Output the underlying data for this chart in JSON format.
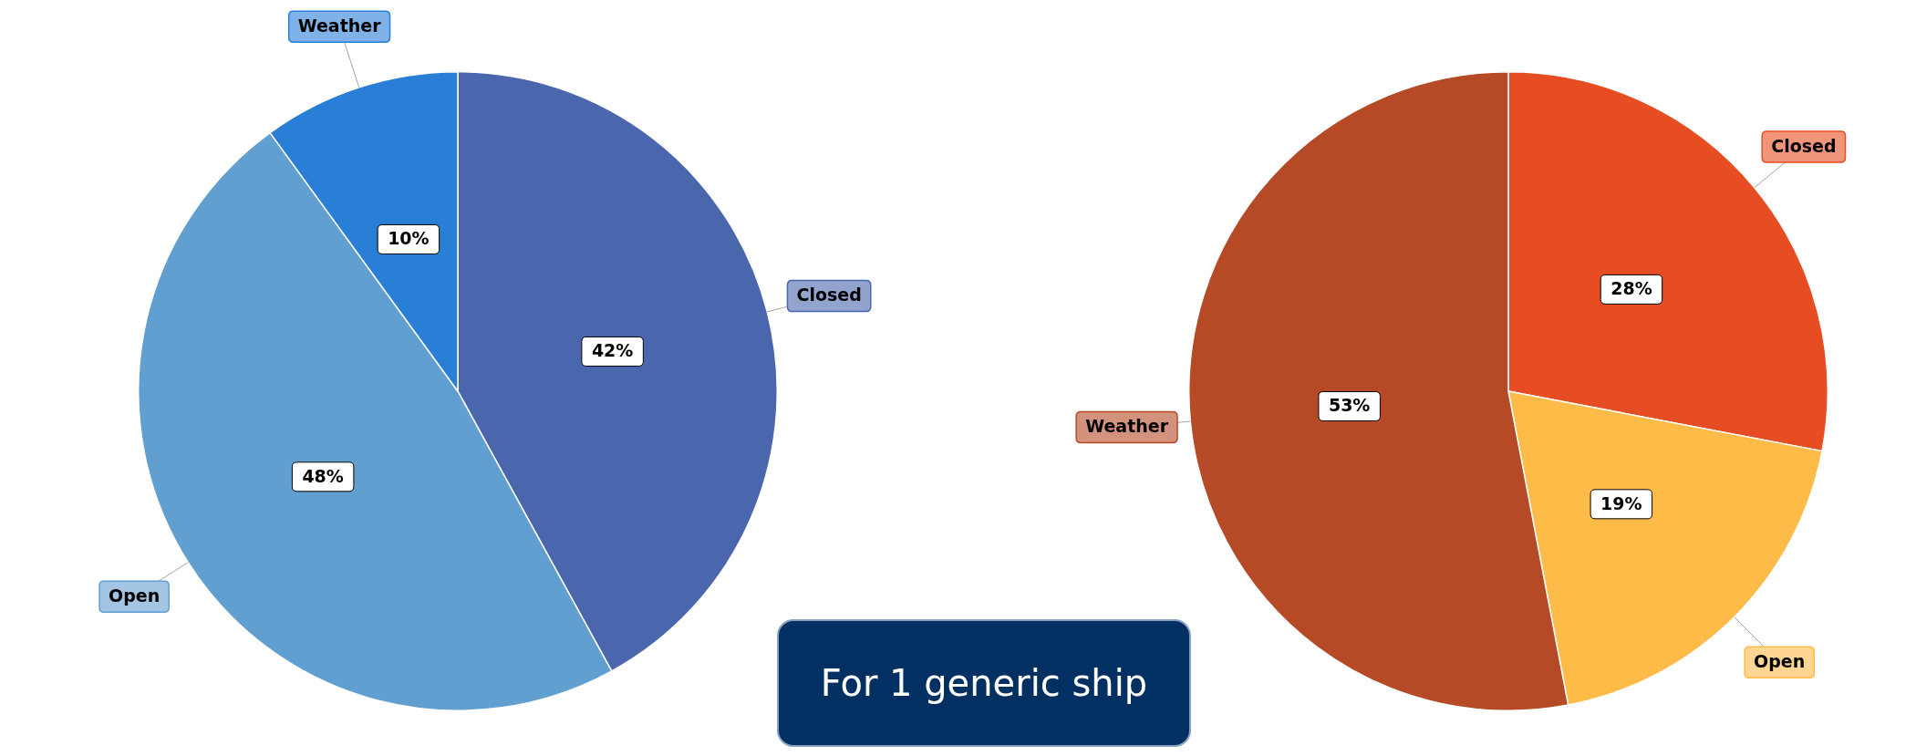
{
  "chart_data": [
    {
      "type": "pie",
      "categories": [
        "Closed",
        "Open",
        "Weather"
      ],
      "values": [
        42,
        48,
        10
      ],
      "colors": [
        "#4a66ac",
        "#629fd1",
        "#297fd5"
      ],
      "value_labels": [
        "42%",
        "48%",
        "10%"
      ]
    },
    {
      "type": "pie",
      "categories": [
        "Closed",
        "Open",
        "Weather"
      ],
      "values": [
        28,
        19,
        53
      ],
      "colors": [
        "#e64d22",
        "#ffbb47",
        "#b64926"
      ],
      "value_labels": [
        "28%",
        "19%",
        "53%"
      ]
    },
    {
      "type": "other",
      "annotations": [
        "For 1 generic ship"
      ]
    }
  ]
}
